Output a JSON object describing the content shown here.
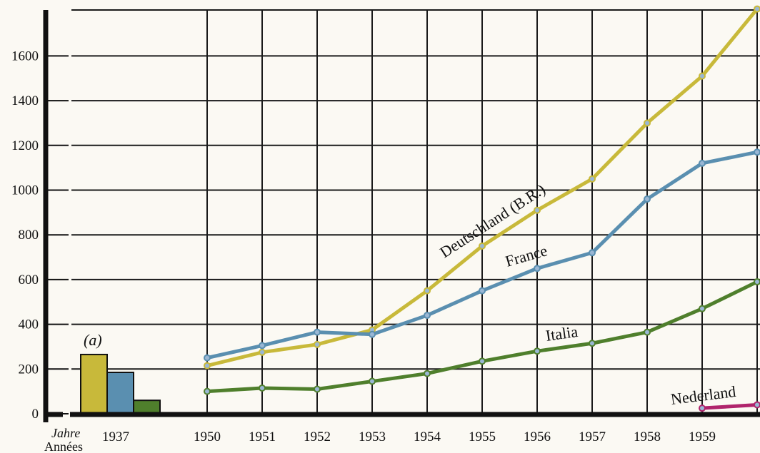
{
  "chart_data": {
    "type": "line",
    "title": "",
    "xlabel": "",
    "ylabel": "",
    "x_axis_words": {
      "top": "Jahre",
      "bottom": "Années"
    },
    "ylim": [
      0,
      1800
    ],
    "y_ticks": [
      0,
      200,
      400,
      600,
      800,
      1000,
      1200,
      1400,
      1600
    ],
    "grid": true,
    "baseline_bars": {
      "year": "1937",
      "annotation": "(a)",
      "values": [
        {
          "series": "Deutschland (B.R.)",
          "value": 265,
          "color": "#c8b93a"
        },
        {
          "series": "France",
          "value": 185,
          "color": "#5a8fb0"
        },
        {
          "series": "Italia",
          "value": 60,
          "color": "#4f7f2c"
        }
      ]
    },
    "x": [
      "1950",
      "1951",
      "1952",
      "1953",
      "1954",
      "1955",
      "1956",
      "1957",
      "1958",
      "1959",
      "1960"
    ],
    "x_tick_labels": [
      "1950",
      "1951",
      "1952",
      "1953",
      "1954",
      "1955",
      "1956",
      "1957",
      "1958",
      "1959"
    ],
    "series": [
      {
        "name": "Deutschland (B.R.)",
        "color": "#c8b93a",
        "values": [
          215,
          275,
          310,
          375,
          550,
          750,
          910,
          1050,
          1300,
          1510,
          1810
        ]
      },
      {
        "name": "France",
        "color": "#5a8fb0",
        "values": [
          250,
          305,
          365,
          355,
          440,
          550,
          650,
          720,
          960,
          1120,
          1170
        ]
      },
      {
        "name": "Italia",
        "color": "#4f7f2c",
        "values": [
          100,
          115,
          110,
          145,
          180,
          235,
          280,
          315,
          365,
          470,
          590
        ]
      },
      {
        "name": "Nederland",
        "color": "#b0246c",
        "values": [
          null,
          null,
          null,
          null,
          null,
          null,
          null,
          null,
          null,
          25,
          40
        ]
      }
    ]
  }
}
